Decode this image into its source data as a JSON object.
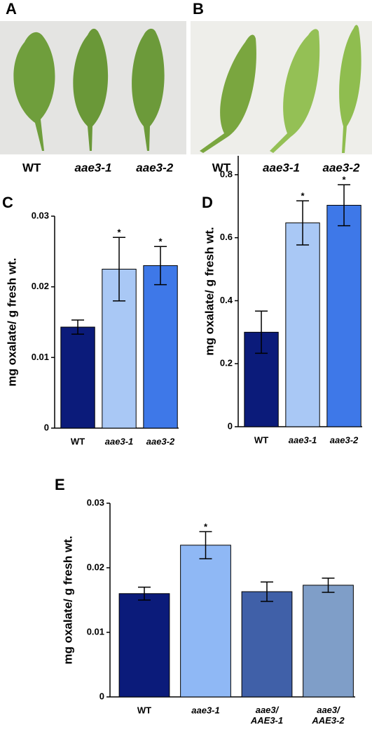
{
  "photos": [
    {
      "label": "A",
      "captions": [
        "WT",
        "aae3-1",
        "aae3-2"
      ]
    },
    {
      "label": "B",
      "captions": [
        "WT",
        "aae3-1",
        "aae3-2"
      ]
    }
  ],
  "chart_data": [
    {
      "type": "bar",
      "label": "C",
      "y_label": "mg oxalate/ g fresh wt.",
      "categories": [
        "WT",
        "aae3-1",
        "aae3-2"
      ],
      "values": [
        0.0143,
        0.0225,
        0.023
      ],
      "errors": [
        0.001,
        0.0045,
        0.0027
      ],
      "significance": [
        null,
        "*",
        "*"
      ],
      "colors": [
        "#0b1b7a",
        "#a9c8f5",
        "#3e78e8"
      ],
      "ylim": [
        0,
        0.03
      ],
      "yticks": [
        0,
        0.01,
        0.02,
        0.03
      ]
    },
    {
      "type": "bar",
      "label": "D",
      "y_label": "mg oxalate/ g fresh wt.",
      "categories": [
        "WT",
        "aae3-1",
        "aae3-2"
      ],
      "values": [
        0.3,
        0.647,
        0.703
      ],
      "errors": [
        0.067,
        0.07,
        0.065
      ],
      "significance": [
        null,
        "*",
        "*"
      ],
      "colors": [
        "#0b1b7a",
        "#a9c8f5",
        "#3e78e8"
      ],
      "ylim": [
        0,
        0.86
      ],
      "yticks": [
        0,
        0.2,
        0.4,
        0.6,
        0.8
      ]
    },
    {
      "type": "bar",
      "label": "E",
      "y_label": "mg oxalate/ g fresh wt.",
      "categories": [
        "WT",
        "aae3-1",
        "aae3/ AAE3-1",
        "aae3/ AAE3-2"
      ],
      "values": [
        0.016,
        0.0235,
        0.0163,
        0.0173
      ],
      "errors": [
        0.001,
        0.0021,
        0.0015,
        0.0011
      ],
      "significance": [
        null,
        "*",
        null,
        null
      ],
      "colors": [
        "#0b1b7a",
        "#8fb8f5",
        "#4060a8",
        "#7f9ec8"
      ],
      "ylim": [
        0,
        0.03
      ],
      "yticks": [
        0,
        0.01,
        0.02,
        0.03
      ]
    }
  ]
}
